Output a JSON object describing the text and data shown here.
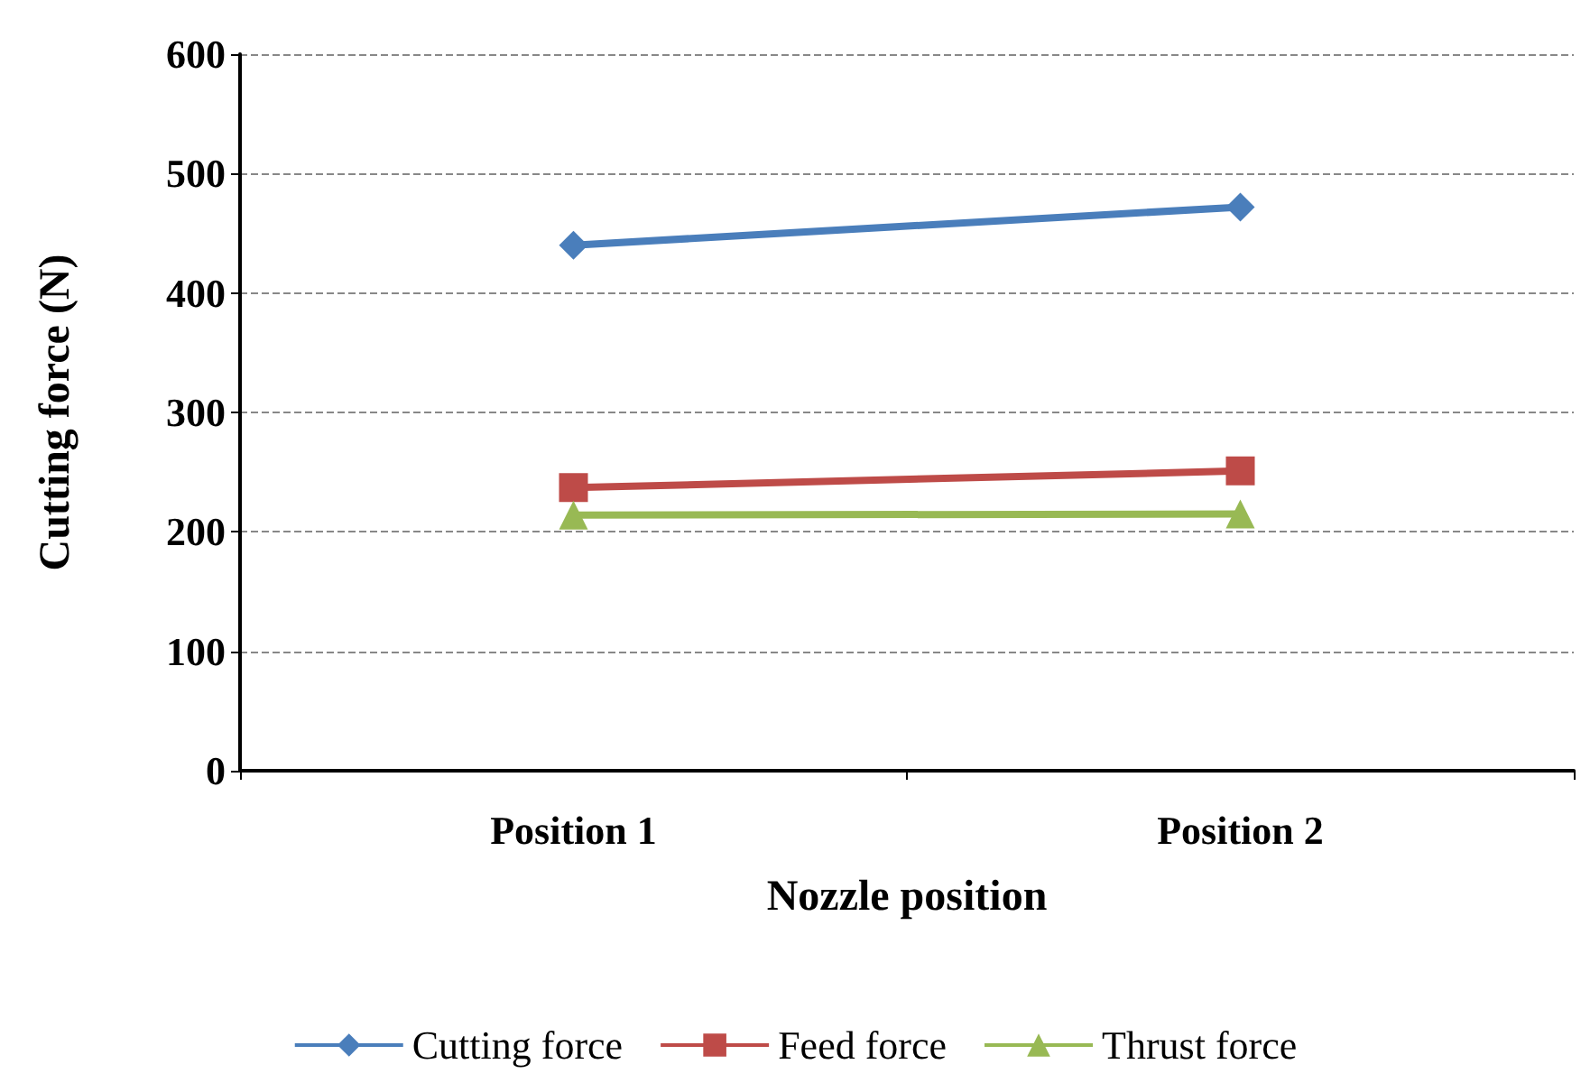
{
  "chart_data": {
    "type": "line",
    "xlabel": "Nozzle position",
    "ylabel": "Cutting force (N)",
    "categories": [
      "Position 1",
      "Position 2"
    ],
    "series": [
      {
        "name": "Cutting force",
        "color": "#4a7ebb",
        "marker": "diamond",
        "values": [
          440,
          472
        ]
      },
      {
        "name": "Feed force",
        "color": "#be4b48",
        "marker": "square",
        "values": [
          237,
          251
        ]
      },
      {
        "name": "Thrust force",
        "color": "#98b954",
        "marker": "triangle",
        "values": [
          214,
          215
        ]
      }
    ],
    "ylim": [
      0,
      600
    ],
    "yticks": [
      0,
      100,
      200,
      300,
      400,
      500,
      600
    ],
    "grid": "y",
    "legend": "bottom"
  }
}
